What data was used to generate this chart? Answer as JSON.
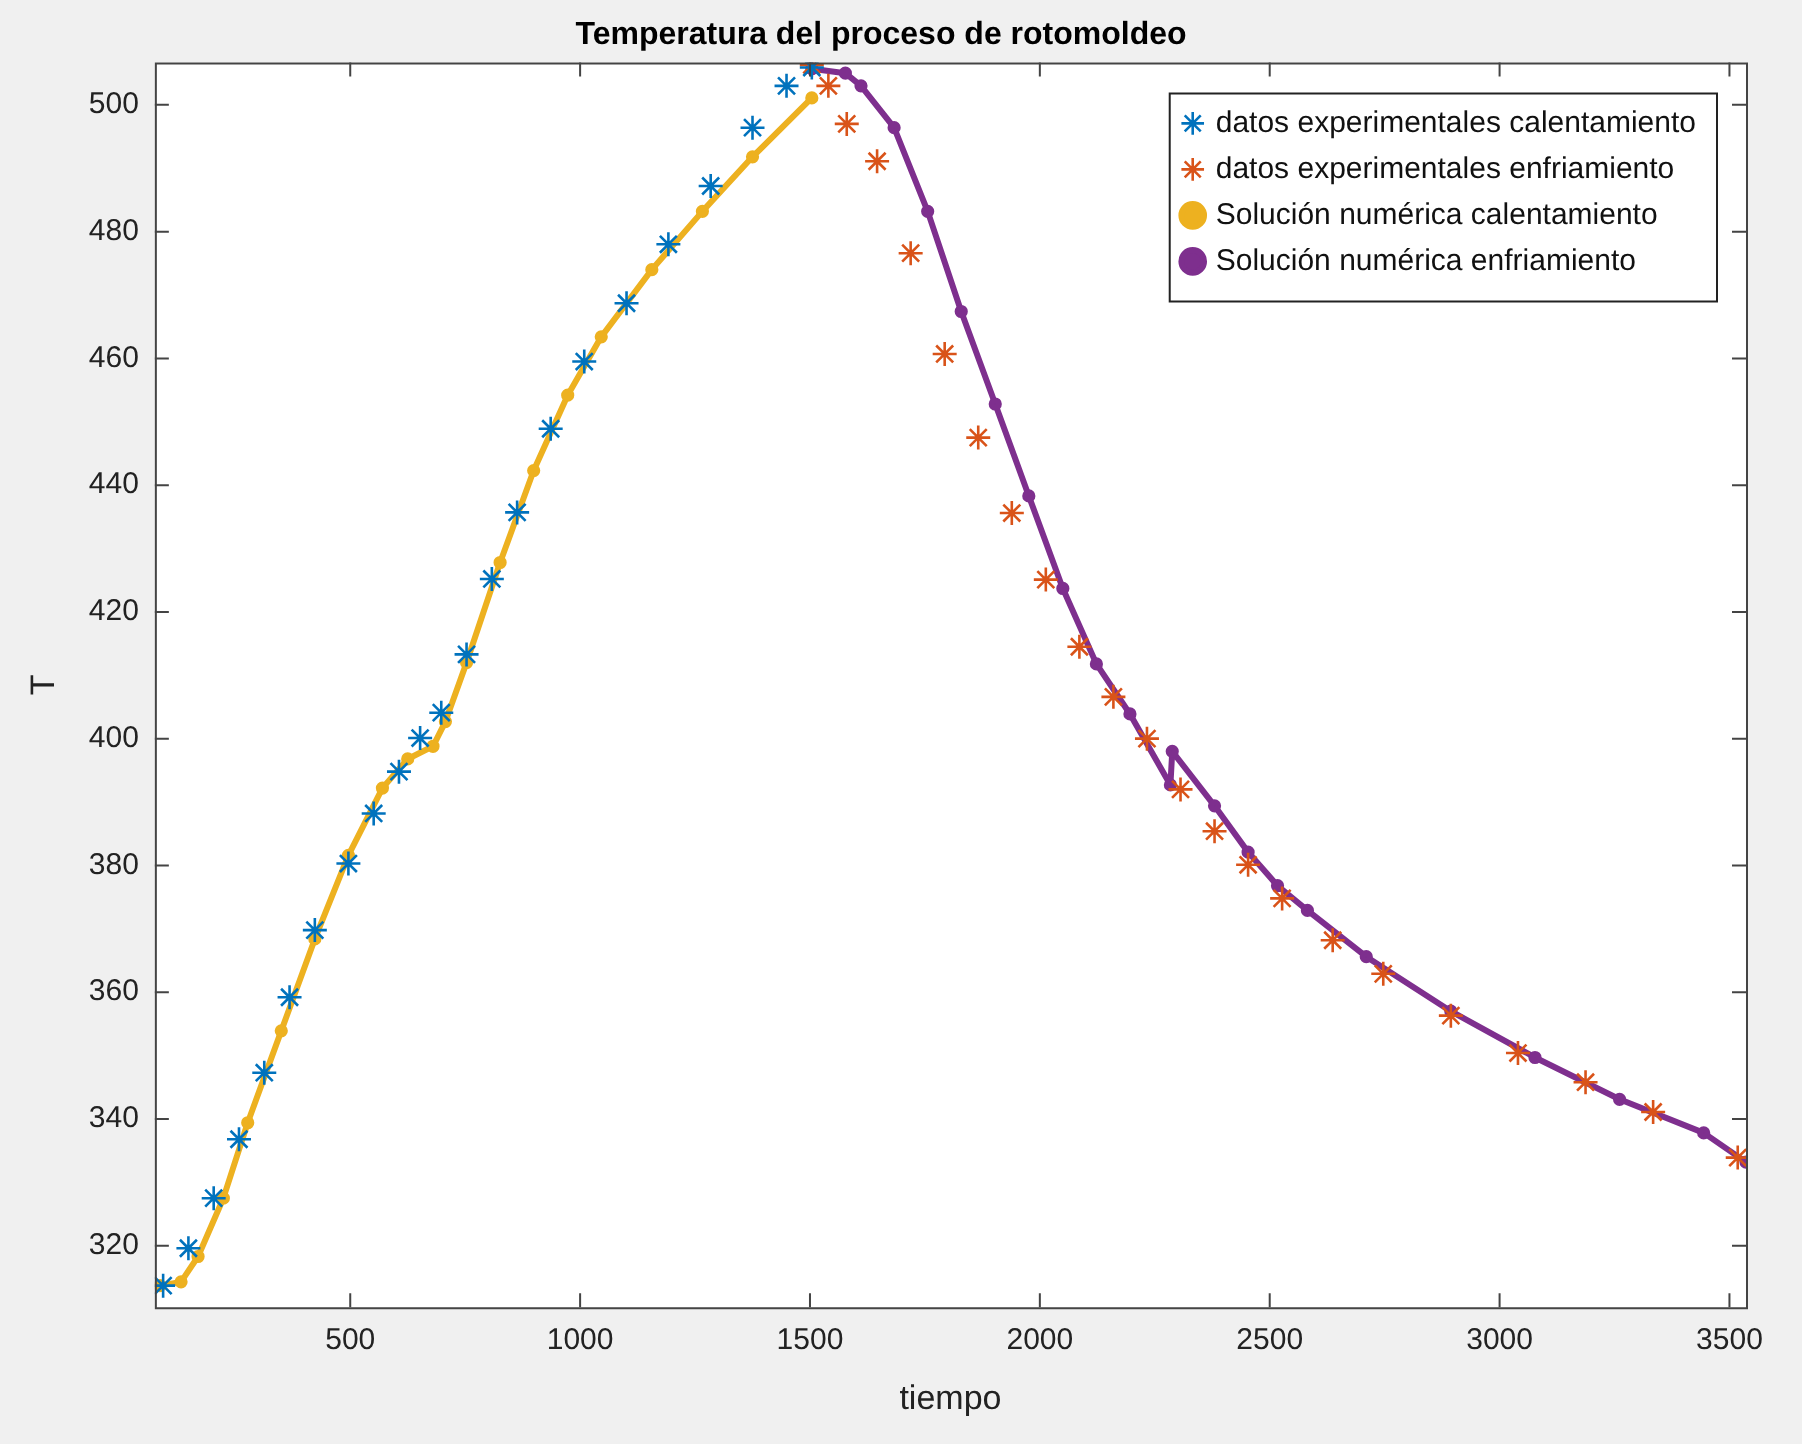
{
  "chart_data": {
    "type": "line",
    "title": "Temperatura del proceso de rotomoldeo",
    "xlabel": "tiempo",
    "ylabel": "T",
    "xlim": [
      75,
      3536
    ],
    "xticks": [
      500,
      1000,
      1500,
      2000,
      2500,
      3000,
      3500
    ],
    "ylim": [
      310.3,
      506.7
    ],
    "yticks": [
      320,
      340,
      360,
      380,
      400,
      420,
      440,
      460,
      480,
      500
    ],
    "grid": false,
    "legend": "top right",
    "series": [
      {
        "name": "datos experimentales calentamiento",
        "type": "scatter",
        "marker": "cross",
        "color": "#0072bd",
        "x": [
          93,
          148,
          203,
          258,
          313,
          368,
          423,
          496,
          551,
          606,
          652,
          698,
          753,
          808,
          863,
          936,
          1009,
          1101,
          1192,
          1284,
          1375,
          1449,
          1504
        ],
        "values": [
          313.7,
          319.6,
          327.5,
          336.8,
          347.3,
          359.2,
          369.8,
          380.3,
          388.2,
          394.8,
          400.1,
          404.1,
          413.3,
          425.2,
          435.7,
          448.9,
          459.5,
          468.7,
          478,
          487.2,
          496.4,
          503,
          505.9
        ]
      },
      {
        "name": "datos experimentales enfriamiento",
        "type": "scatter",
        "marker": "cross",
        "color": "#d95319",
        "x": [
          1504,
          1540,
          1580,
          1646,
          1719,
          1793,
          1866,
          1939,
          2013,
          2086,
          2160,
          2233,
          2306,
          2380,
          2453,
          2527,
          2637,
          2747,
          2894,
          3040,
          3187,
          3334,
          3518
        ],
        "values": [
          506.3,
          503,
          497,
          491.1,
          476.6,
          460.7,
          447.5,
          435.6,
          425.1,
          414.5,
          406.6,
          400,
          392,
          385.4,
          380.1,
          374.8,
          368.2,
          362.9,
          356.3,
          350.4,
          345.8,
          341.1,
          333.9
        ]
      },
      {
        "name": "Solución numérica calentamiento",
        "marker": "circle",
        "color": "#edb120",
        "x": [
          86,
          132,
          169,
          224,
          277,
          350,
          423,
          496,
          570,
          625,
          680,
          707,
          753,
          826,
          899,
          973,
          1046,
          1156,
          1266,
          1375,
          1504
        ],
        "values": [
          313.7,
          314.3,
          318.3,
          327.5,
          339.4,
          353.9,
          368.4,
          381.6,
          392.2,
          396.8,
          398.8,
          402.7,
          412,
          427.8,
          442.3,
          454.2,
          463.4,
          474,
          483.2,
          491.8,
          501.1
        ]
      },
      {
        "name": "Solución numérica enfriamiento",
        "marker": "circle",
        "color": "#7e2f8e",
        "x": [
          1504,
          1577,
          1611,
          1683,
          1756,
          1829,
          1903,
          1976,
          2050,
          2123,
          2196,
          2284,
          2288,
          2380,
          2453,
          2517,
          2582,
          2710,
          2894,
          3077,
          3261,
          3444,
          3536
        ],
        "values": [
          505.7,
          505,
          503,
          496.4,
          483.2,
          467.4,
          452.8,
          438.3,
          423.7,
          411.8,
          403.9,
          392.7,
          398,
          389.4,
          382.1,
          376.8,
          372.9,
          365.6,
          357,
          349.7,
          343.1,
          337.8,
          333.2
        ]
      }
    ]
  }
}
